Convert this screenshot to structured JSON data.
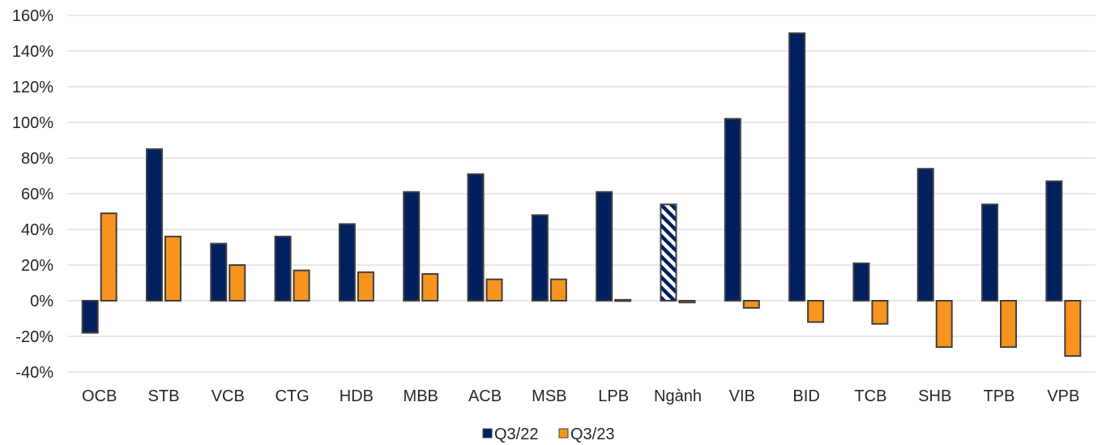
{
  "chart_data": {
    "type": "bar",
    "categories": [
      "OCB",
      "STB",
      "VCB",
      "CTG",
      "HDB",
      "MBB",
      "ACB",
      "MSB",
      "LPB",
      "Ngành",
      "VIB",
      "BID",
      "TCB",
      "SHB",
      "TPB",
      "VPB"
    ],
    "series": [
      {
        "name": "Q3/22",
        "color": "#002060",
        "values": [
          -18,
          85,
          32,
          36,
          43,
          61,
          71,
          48,
          61,
          54,
          102,
          150,
          21,
          74,
          54,
          67
        ]
      },
      {
        "name": "Q3/23",
        "color": "#F7941D",
        "values": [
          49,
          36,
          20,
          17,
          16,
          15,
          12,
          12,
          0.5,
          -1,
          -4,
          -12,
          -13,
          -26,
          -26,
          -31
        ]
      }
    ],
    "highlight": {
      "category": "Ngành",
      "series": "Q3/22",
      "pattern": "diagonal-stripes"
    },
    "ylim": [
      -40,
      160
    ],
    "yticks": [
      -40,
      -20,
      0,
      20,
      40,
      60,
      80,
      100,
      120,
      140,
      160
    ],
    "ytick_labels": [
      "-40%",
      "-20%",
      "0%",
      "20%",
      "40%",
      "60%",
      "80%",
      "100%",
      "120%",
      "140%",
      "160%"
    ],
    "grid": true,
    "legend_position": "bottom-center",
    "title": "",
    "xlabel": "",
    "ylabel": ""
  }
}
